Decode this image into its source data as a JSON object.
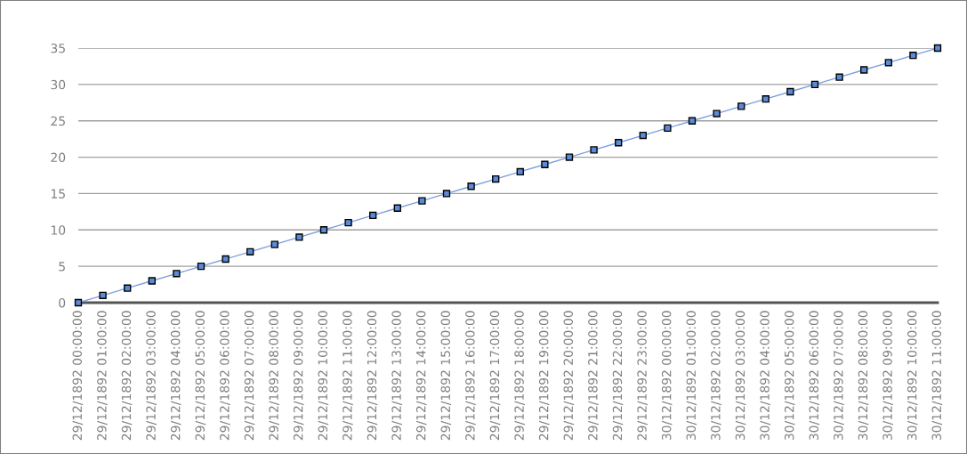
{
  "chart_data": {
    "type": "line",
    "categories": [
      "29/12/1892 00:00:00",
      "29/12/1892 01:00:00",
      "29/12/1892 02:00:00",
      "29/12/1892 03:00:00",
      "29/12/1892 04:00:00",
      "29/12/1892 05:00:00",
      "29/12/1892 06:00:00",
      "29/12/1892 07:00:00",
      "29/12/1892 08:00:00",
      "29/12/1892 09:00:00",
      "29/12/1892 10:00:00",
      "29/12/1892 11:00:00",
      "29/12/1892 12:00:00",
      "29/12/1892 13:00:00",
      "29/12/1892 14:00:00",
      "29/12/1892 15:00:00",
      "29/12/1892 16:00:00",
      "29/12/1892 17:00:00",
      "29/12/1892 18:00:00",
      "29/12/1892 19:00:00",
      "29/12/1892 20:00:00",
      "29/12/1892 21:00:00",
      "29/12/1892 22:00:00",
      "29/12/1892 23:00:00",
      "30/12/1892 00:00:00",
      "30/12/1892 01:00:00",
      "30/12/1892 02:00:00",
      "30/12/1892 03:00:00",
      "30/12/1892 04:00:00",
      "30/12/1892 05:00:00",
      "30/12/1892 06:00:00",
      "30/12/1892 07:00:00",
      "30/12/1892 08:00:00",
      "30/12/1892 09:00:00",
      "30/12/1892 10:00:00",
      "30/12/1892 11:00:00"
    ],
    "series": [
      {
        "color": "#7f9fdf",
        "values": [
          0,
          1,
          2,
          3,
          4,
          5,
          6,
          7,
          8,
          9,
          10,
          11,
          12,
          13,
          14,
          15,
          16,
          17,
          18,
          19,
          20,
          21,
          22,
          23,
          24,
          25,
          26,
          27,
          28,
          29,
          30,
          31,
          32,
          33,
          34,
          35
        ]
      }
    ],
    "ylim": [
      0,
      35
    ],
    "yticks": [
      0,
      5,
      10,
      15,
      20,
      25,
      30,
      35
    ],
    "grid": "y",
    "marker": "square",
    "line_style": "solid"
  }
}
